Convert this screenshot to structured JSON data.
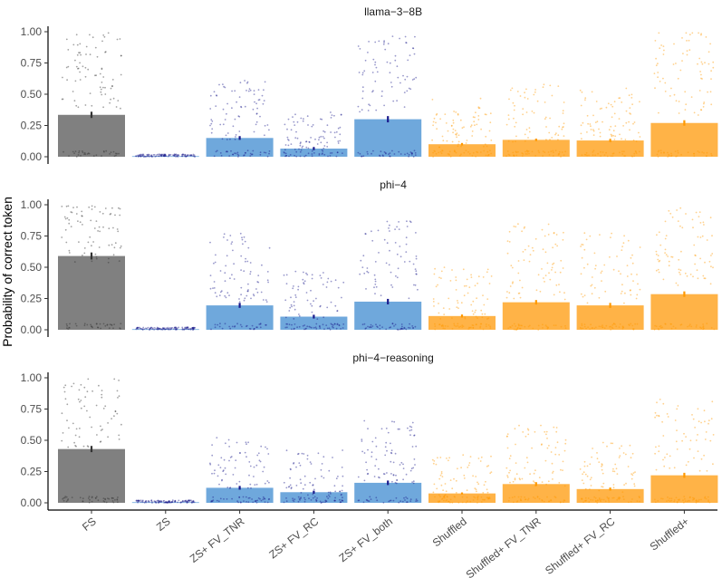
{
  "chart_data": {
    "type": "bar",
    "ylabel": "Probability of correct token",
    "xlabel": "",
    "ylim": [
      0,
      1
    ],
    "yticks": [
      "0.00",
      "0.25",
      "0.50",
      "0.75",
      "1.00"
    ],
    "categories": [
      "FS",
      "ZS",
      "ZS+ FV_TNR",
      "ZS+ FV_RC",
      "ZS+ FV_both",
      "Shuffled",
      "Shuffled+ FV_TNR",
      "Shuffled+ FV_RC",
      "Shuffled+"
    ],
    "colors": {
      "FS": "#808080",
      "ZS": "#6fa8dc",
      "ZS+ FV_TNR": "#6fa8dc",
      "ZS+ FV_RC": "#6fa8dc",
      "ZS+ FV_both": "#6fa8dc",
      "Shuffled": "#ffb347",
      "Shuffled+ FV_TNR": "#ffb347",
      "Shuffled+ FV_RC": "#ffb347",
      "Shuffled+": "#ffb347"
    },
    "dot_colors": {
      "FS": "#333333",
      "ZS": "#1a1a8c",
      "ZS+ FV_TNR": "#1a1a8c",
      "ZS+ FV_RC": "#1a1a8c",
      "ZS+ FV_both": "#1a1a8c",
      "Shuffled": "#ff9900",
      "Shuffled+ FV_TNR": "#ff9900",
      "Shuffled+ FV_RC": "#ff9900",
      "Shuffled+": "#ff9900"
    },
    "facets": [
      {
        "title": "llama−3−8B",
        "values": [
          0.335,
          0.005,
          0.15,
          0.065,
          0.3,
          0.1,
          0.135,
          0.13,
          0.27
        ],
        "errors": [
          0.025,
          0.002,
          0.015,
          0.012,
          0.025,
          0.01,
          0.01,
          0.012,
          0.022
        ]
      },
      {
        "title": "phi−4",
        "values": [
          0.59,
          0.005,
          0.195,
          0.105,
          0.225,
          0.11,
          0.22,
          0.195,
          0.285
        ],
        "errors": [
          0.028,
          0.002,
          0.02,
          0.015,
          0.022,
          0.012,
          0.018,
          0.02,
          0.022
        ]
      },
      {
        "title": "phi−4−reasoning",
        "values": [
          0.43,
          0.005,
          0.12,
          0.085,
          0.16,
          0.075,
          0.15,
          0.11,
          0.22
        ],
        "errors": [
          0.025,
          0.002,
          0.015,
          0.012,
          0.018,
          0.008,
          0.015,
          0.012,
          0.02
        ]
      }
    ]
  }
}
